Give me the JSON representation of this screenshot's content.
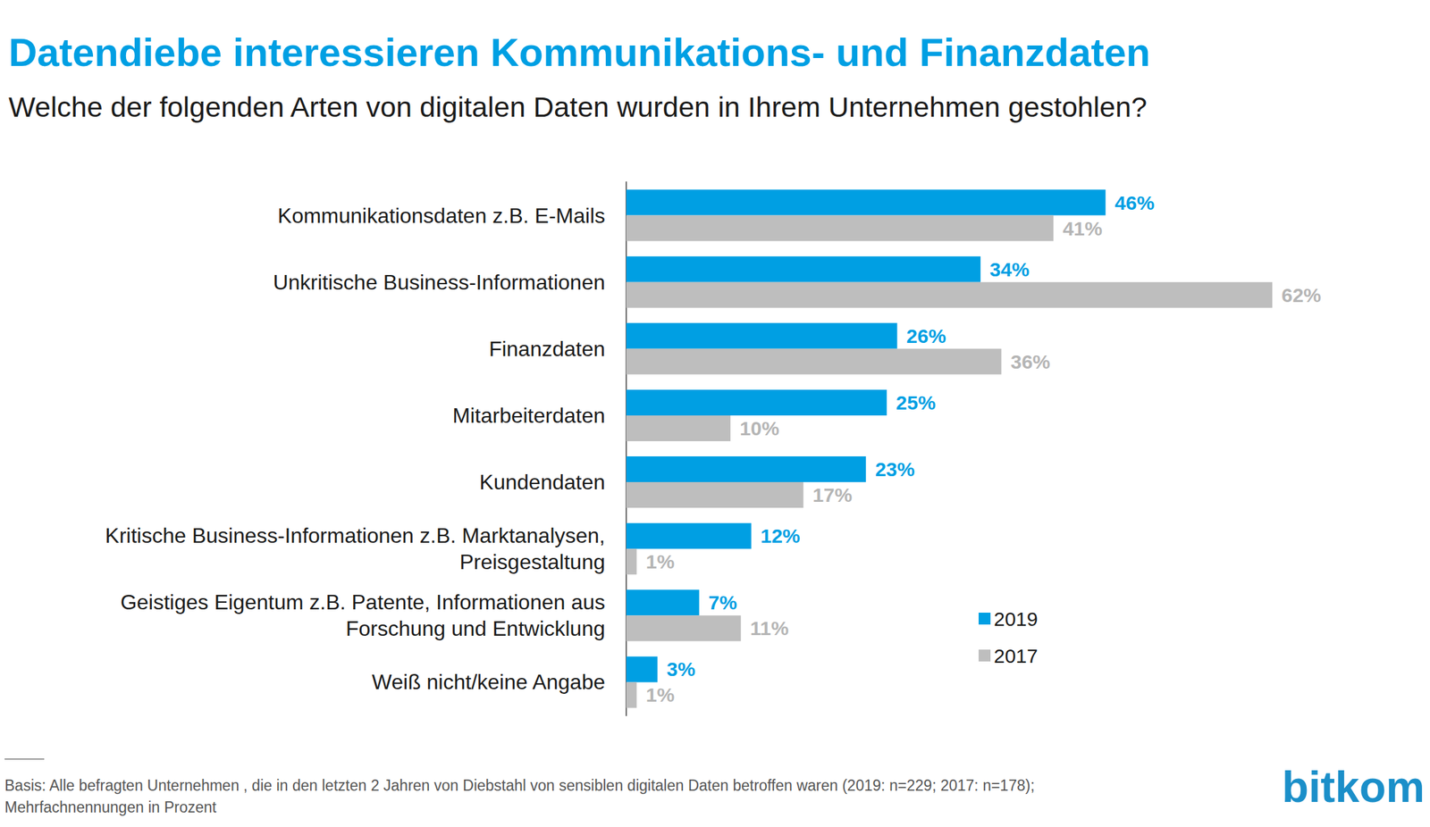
{
  "chart_data": {
    "type": "bar",
    "orientation": "horizontal",
    "title": "Datendiebe interessieren Kommunikations- und Finanzdaten",
    "subtitle": "Welche der folgenden Arten von digitalen Daten wurden in Ihrem Unternehmen gestohlen?",
    "categories": [
      "Kommunikationsdaten z.B. E-Mails",
      "Unkritische Business-Informationen",
      "Finanzdaten",
      "Mitarbeiterdaten",
      "Kundendaten",
      "Kritische Business-Informationen z.B. Marktanalysen,\nPreisgestaltung",
      "Geistiges Eigentum z.B. Patente, Informationen aus\nForschung und Entwicklung",
      "Weiß nicht/keine Angabe"
    ],
    "series": [
      {
        "name": "2019",
        "color": "#009fe3",
        "values": [
          46,
          34,
          26,
          25,
          23,
          12,
          7,
          3
        ],
        "value_labels": [
          "46%",
          "34%",
          "26%",
          "25%",
          "23%",
          "12%",
          "7%",
          "3%"
        ]
      },
      {
        "name": "2017",
        "color": "#bebebe",
        "values": [
          41,
          62,
          36,
          10,
          17,
          1,
          11,
          1
        ],
        "value_labels": [
          "41%",
          "62%",
          "36%",
          "10%",
          "17%",
          "1%",
          "11%",
          "1%"
        ]
      }
    ],
    "xlim": [
      0,
      62
    ],
    "data_labels": true,
    "tick_labels": "y",
    "grid": false,
    "legend": "lower right",
    "annotations": [
      "Basis: Alle befragten Unternehmen , die in den letzten 2 Jahren von Diebstahl von sensiblen digitalen Daten betroffen waren (2019: n=229; 2017: n=178);\nMehrfachnennungen in Prozent",
      "bitkom"
    ]
  }
}
